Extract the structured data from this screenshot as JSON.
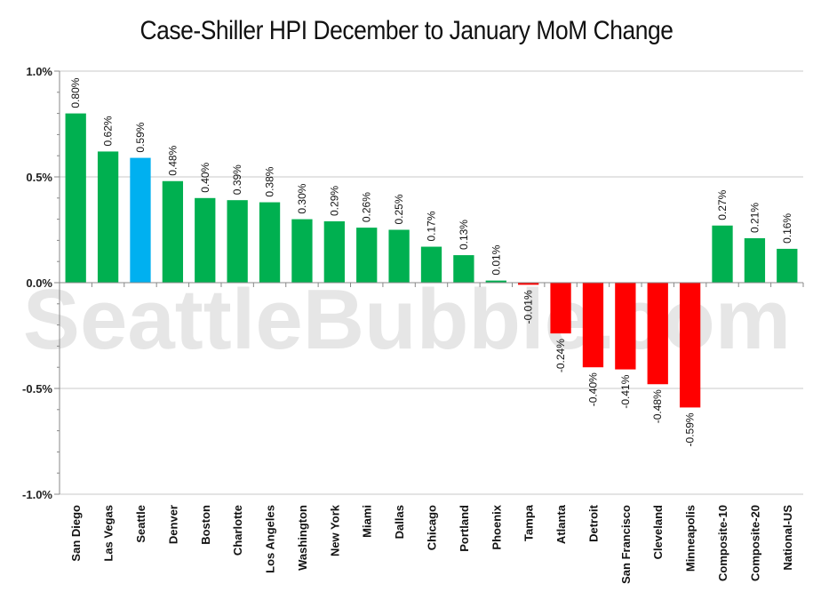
{
  "chart_data": {
    "type": "bar",
    "title": "Case-Shiller HPI  December to January MoM Change",
    "watermark": "SeattleBubble.com",
    "categories": [
      "San Diego",
      "Las Vegas",
      "Seattle",
      "Denver",
      "Boston",
      "Charlotte",
      "Los Angeles",
      "Washington",
      "New York",
      "Miami",
      "Dallas",
      "Chicago",
      "Portland",
      "Phoenix",
      "Tampa",
      "Atlanta",
      "Detroit",
      "San Francisco",
      "Cleveland",
      "Minneapolis",
      "Composite-10",
      "Composite-20",
      "National-US"
    ],
    "values": [
      0.8,
      0.62,
      0.59,
      0.48,
      0.4,
      0.39,
      0.38,
      0.3,
      0.29,
      0.26,
      0.25,
      0.17,
      0.13,
      0.01,
      -0.01,
      -0.24,
      -0.4,
      -0.41,
      -0.48,
      -0.59,
      0.27,
      0.21,
      0.16
    ],
    "data_labels": [
      "0.80%",
      "0.62%",
      "0.59%",
      "0.48%",
      "0.40%",
      "0.39%",
      "0.38%",
      "0.30%",
      "0.29%",
      "0.26%",
      "0.25%",
      "0.17%",
      "0.13%",
      "0.01%",
      "-0.01%",
      "-0.24%",
      "-0.40%",
      "-0.41%",
      "-0.48%",
      "-0.59%",
      "0.27%",
      "0.21%",
      "0.16%"
    ],
    "highlight_category": "Seattle",
    "y_ticks": [
      1.0,
      0.5,
      0.0,
      -0.5,
      -1.0
    ],
    "y_tick_labels": [
      "1.0%",
      "0.5%",
      "0.0%",
      "-0.5%",
      "-1.0%"
    ],
    "ylim": [
      -1.0,
      1.0
    ],
    "grid": "horizontal",
    "colors": {
      "positive": "#00b050",
      "negative": "#ff0000",
      "highlight": "#00b0f0",
      "grid": "#c8c8c8",
      "axis": "#888888"
    }
  }
}
